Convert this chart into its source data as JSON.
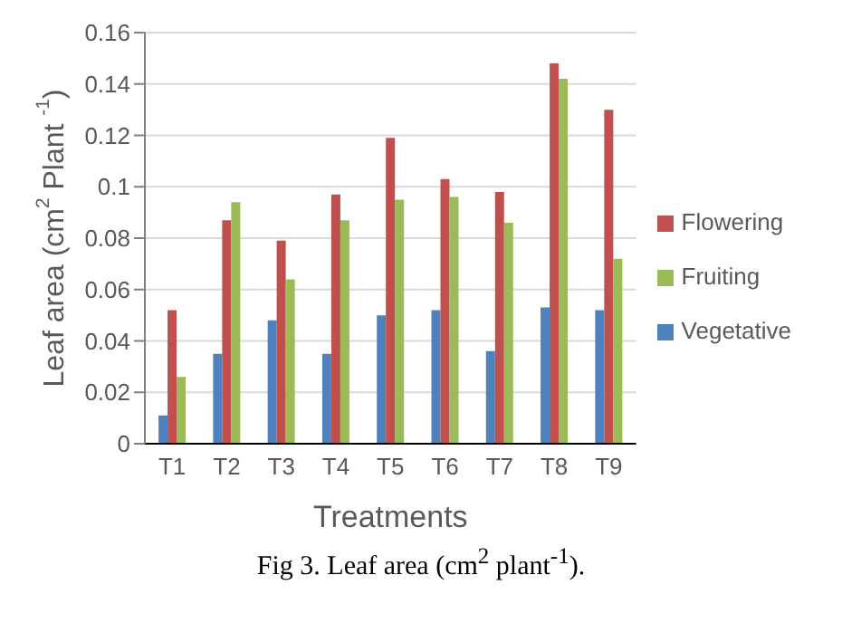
{
  "chart_data": {
    "type": "bar",
    "ylabel": "Leaf area (cm$^{2}$ Plant $^{-1}$)",
    "xlabel": "Treatments",
    "categories": [
      "T1",
      "T2",
      "T3",
      "T4",
      "T5",
      "T6",
      "T7",
      "T8",
      "T9"
    ],
    "series": [
      {
        "name": "Vegetative",
        "color": "#4f81bd",
        "values": [
          0.011,
          0.035,
          0.048,
          0.035,
          0.05,
          0.052,
          0.036,
          0.053,
          0.052
        ]
      },
      {
        "name": "Flowering",
        "color": "#c0504d",
        "values": [
          0.052,
          0.087,
          0.079,
          0.097,
          0.119,
          0.103,
          0.098,
          0.148,
          0.13
        ]
      },
      {
        "name": "Fruiting",
        "color": "#9bbb59",
        "values": [
          0.026,
          0.094,
          0.064,
          0.087,
          0.095,
          0.096,
          0.086,
          0.142,
          0.072
        ]
      }
    ],
    "ylim": [
      0,
      0.16
    ],
    "yticks": [
      0,
      0.02,
      0.04,
      0.06,
      0.08,
      0.1,
      0.12,
      0.14,
      0.16
    ],
    "grid": "y",
    "legend": "right",
    "annotations": [
      "Fig 3. Leaf area (cm$^{2}$ plant$^{-1}$)."
    ]
  }
}
